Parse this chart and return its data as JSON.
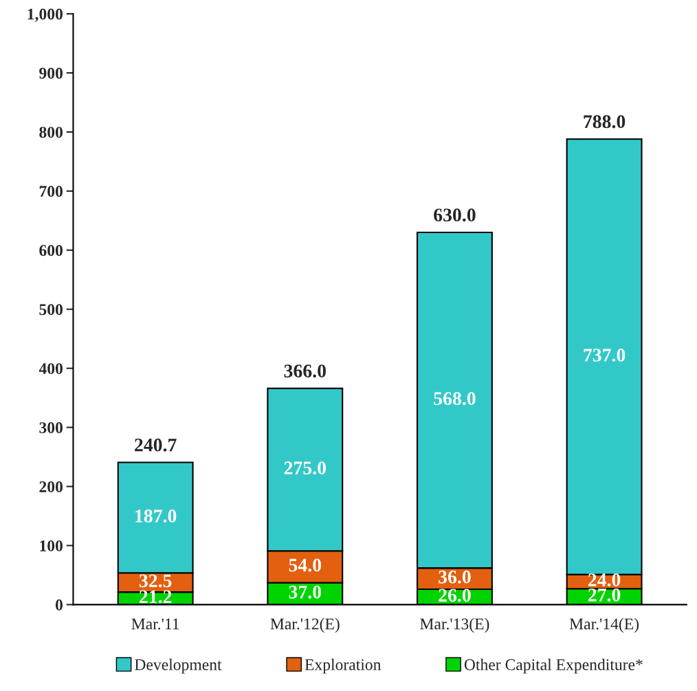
{
  "chart_data": {
    "type": "bar",
    "stacked": true,
    "categories": [
      "Mar.'11",
      "Mar.'12(E)",
      "Mar.'13(E)",
      "Mar.'14(E)"
    ],
    "series": [
      {
        "name": "Other Capital Expenditure*",
        "color": "#00d400",
        "values": [
          21.2,
          37,
          26,
          27
        ],
        "value_labels": [
          "21.2",
          "37.0",
          "26.0",
          "27.0"
        ]
      },
      {
        "name": "Exploration",
        "color": "#e2600f",
        "values": [
          32.5,
          54,
          36,
          24
        ],
        "value_labels": [
          "32.5",
          "54.0",
          "36.0",
          "24.0"
        ]
      },
      {
        "name": "Development",
        "color": "#33c8c8",
        "values": [
          187,
          275,
          568,
          737
        ],
        "value_labels": [
          "187.0",
          "275.0",
          "568.0",
          "737.0"
        ]
      }
    ],
    "totals": [
      "240.7",
      "366.0",
      "630.0",
      "788.0"
    ],
    "ylim": [
      0,
      1000
    ],
    "yticks": [
      0,
      100,
      200,
      300,
      400,
      500,
      600,
      700,
      800,
      900,
      {
        "value": 1000,
        "label": "1,000"
      }
    ],
    "grid": false,
    "legend": "bottom"
  }
}
